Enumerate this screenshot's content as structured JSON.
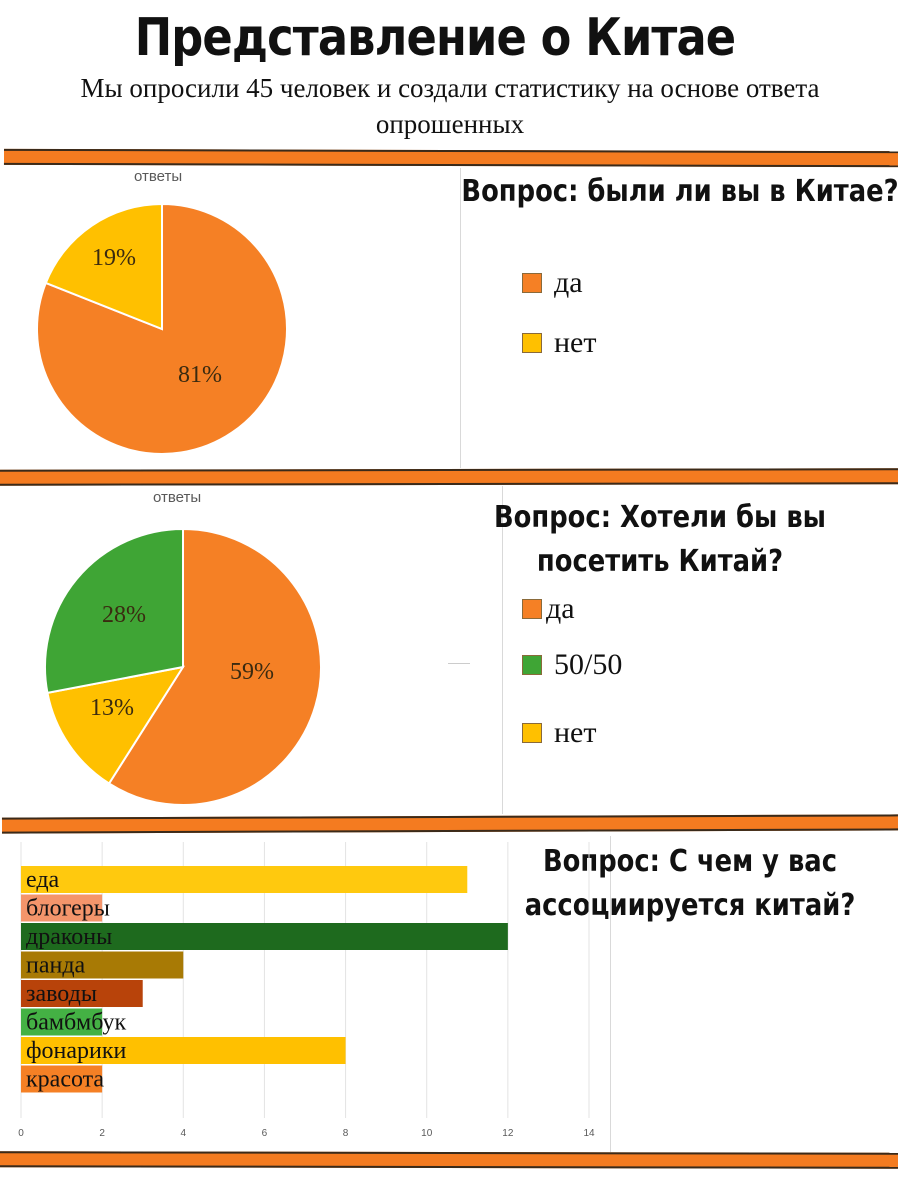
{
  "header": {
    "title": "Представление о Китае",
    "subtitle": "Мы опросили 45 человек и создали статистику на основе ответа опрошенных"
  },
  "sections": [
    {
      "question": "Вопрос: были ли вы в Китае?"
    },
    {
      "question": "Вопрос: Хотели бы вы посетить Китай?"
    },
    {
      "question": "Вопрос: С чем у вас ассоциируется китай?"
    }
  ],
  "colors": {
    "stripe": "#f47b20",
    "orange": "#f58025",
    "yellow": "#ffc000",
    "green": "#3fa535"
  },
  "chart_data": [
    {
      "type": "pie",
      "title": "ответы",
      "slices": [
        {
          "label": "да",
          "value": 81,
          "display": "81%",
          "color": "#f58025"
        },
        {
          "label": "нет",
          "value": 19,
          "display": "19%",
          "color": "#ffc000"
        }
      ],
      "legend": "right"
    },
    {
      "type": "pie",
      "title": "ответы",
      "slices": [
        {
          "label": "да",
          "value": 59,
          "display": "59%",
          "color": "#f58025"
        },
        {
          "label": "нет",
          "value": 13,
          "display": "13%",
          "color": "#ffc000"
        },
        {
          "label": "50/50",
          "value": 28,
          "display": "28%",
          "color": "#3fa535"
        }
      ],
      "legend_order": [
        "да",
        "50/50",
        "нет"
      ],
      "legend": "right"
    },
    {
      "type": "bar",
      "orientation": "horizontal",
      "categories": [
        "еда",
        "блогеры",
        "драконы",
        "панда",
        "заводы",
        "бамбмбук",
        "фонарики",
        "красота"
      ],
      "values": [
        11,
        2,
        12,
        4,
        3,
        2,
        8,
        2
      ],
      "colors": [
        "#ffc90e",
        "#f4956b",
        "#1e6a1e",
        "#a87a05",
        "#b8430a",
        "#44b144",
        "#ffc000",
        "#f58025"
      ],
      "xlim": [
        0,
        14
      ],
      "xticks": [
        "0",
        "2",
        "4",
        "6",
        "8",
        "10",
        "12",
        "14"
      ],
      "grid": true
    }
  ]
}
